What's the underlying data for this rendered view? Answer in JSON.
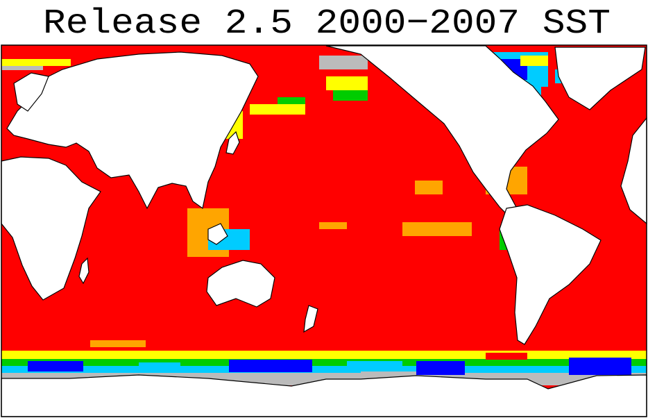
{
  "title": "Release 2.5 2000−2007 SST"
}
